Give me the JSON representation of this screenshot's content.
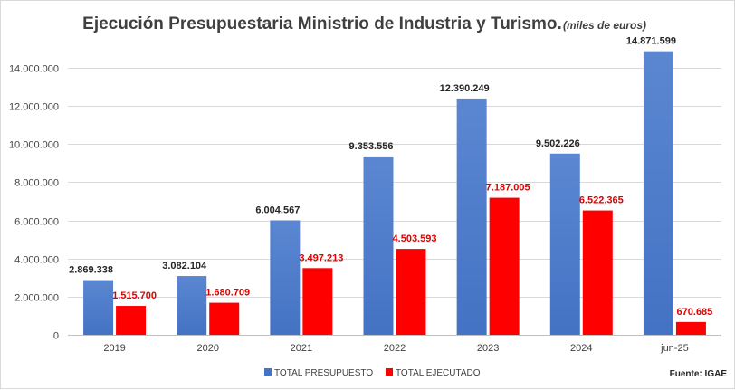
{
  "chart_data": {
    "type": "bar",
    "title": "Ejecución Presupuestaria Ministrio de Industria y Turismo.",
    "subtitle": "(miles de euros)",
    "source": "Fuente: IGAE",
    "categories": [
      "2019",
      "2020",
      "2021",
      "2022",
      "2023",
      "2024",
      "jun-25"
    ],
    "series": [
      {
        "name": "TOTAL PRESUPUESTO",
        "color": "#4472c4",
        "values": [
          2869338,
          3082104,
          6004567,
          9353556,
          12390249,
          9502226,
          14871599
        ],
        "labels": [
          "2.869.338",
          "3.082.104",
          "6.004.567",
          "9.353.556",
          "12.390.249",
          "9.502.226",
          "14.871.599"
        ]
      },
      {
        "name": "TOTAL EJECUTADO",
        "color": "#ff0000",
        "values": [
          1515700,
          1680709,
          3497213,
          4503593,
          7187005,
          6522365,
          670685
        ],
        "labels": [
          "1.515.700",
          "1.680.709",
          "3.497.213",
          "4.503.593",
          "7.187.005",
          "6.522.365",
          "670.685"
        ]
      }
    ],
    "yticks": [
      0,
      2000000,
      4000000,
      6000000,
      8000000,
      10000000,
      12000000,
      14000000
    ],
    "ytick_labels": [
      "0",
      "2.000.000",
      "4.000.000",
      "6.000.000",
      "8.000.000",
      "10.000.000",
      "12.000.000",
      "14.000.000"
    ],
    "ylim": [
      0,
      16000000
    ],
    "grid": true,
    "legend_position": "bottom"
  }
}
